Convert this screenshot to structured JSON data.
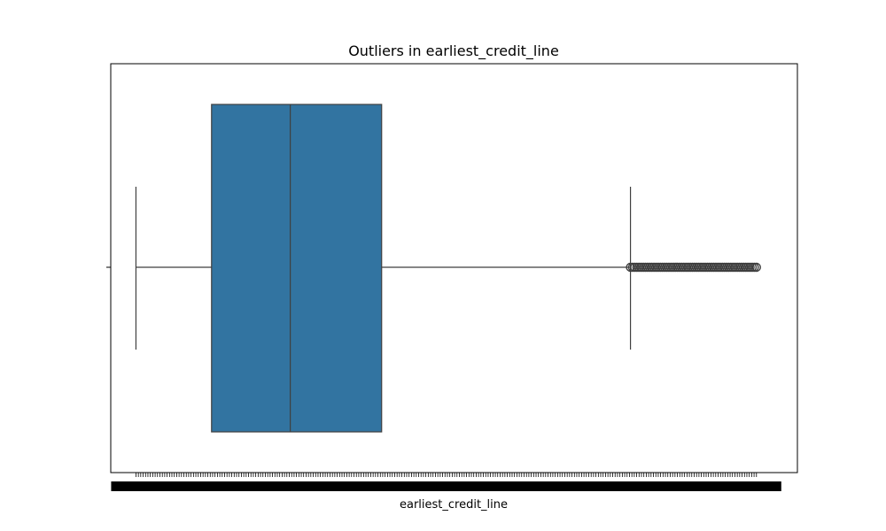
{
  "chart_data": {
    "type": "box",
    "title": "Outliers in earliest_credit_line",
    "xlabel": "earliest_credit_line",
    "ylabel": "",
    "orientation": "horizontal",
    "x_ticks": "dense overlapping categorical tick labels (illegible)",
    "box": {
      "whisker_low": 0.0,
      "q1": 0.12,
      "median": 0.245,
      "q3": 0.39,
      "whisker_high": 0.785
    },
    "outlier_range": [
      0.785,
      0.985
    ],
    "xlim": [
      -0.04,
      1.05
    ],
    "grid": false,
    "legend": "none",
    "colors": {
      "box_fill": "#3274a1",
      "line": "#3f3f3f",
      "outlier": "#3f3f3f",
      "axes": "#000000"
    }
  }
}
